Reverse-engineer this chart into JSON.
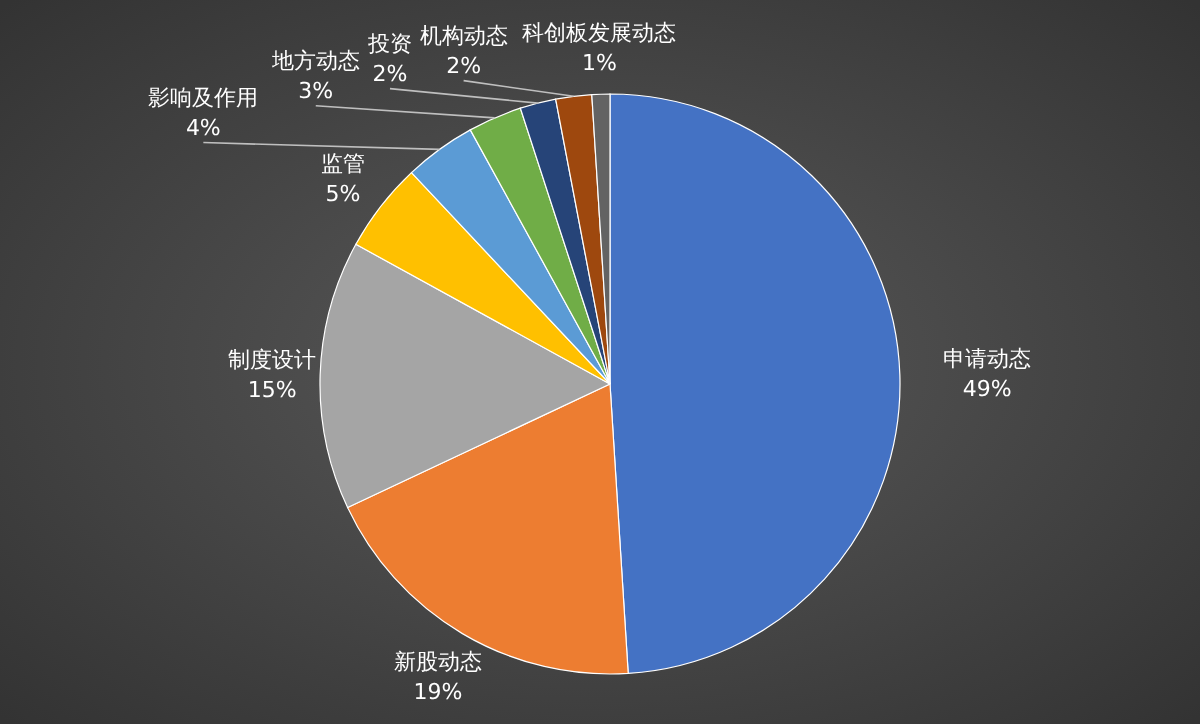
{
  "chart_data": {
    "type": "pie",
    "categories": [
      "申请动态",
      "新股动态",
      "制度设计",
      "监管",
      "影响及作用",
      "地方动态",
      "投资",
      "机构动态",
      "科创板发展动态"
    ],
    "values": [
      49,
      19,
      15,
      5,
      4,
      3,
      2,
      2,
      1
    ],
    "value_labels": [
      "49%",
      "19%",
      "15%",
      "5%",
      "4%",
      "3%",
      "2%",
      "2%",
      "1%"
    ],
    "colors": [
      "#4472c4",
      "#ed7d31",
      "#a5a5a5",
      "#ffc000",
      "#5b9bd5",
      "#70ad47",
      "#264478",
      "#9e480e",
      "#636363"
    ]
  }
}
